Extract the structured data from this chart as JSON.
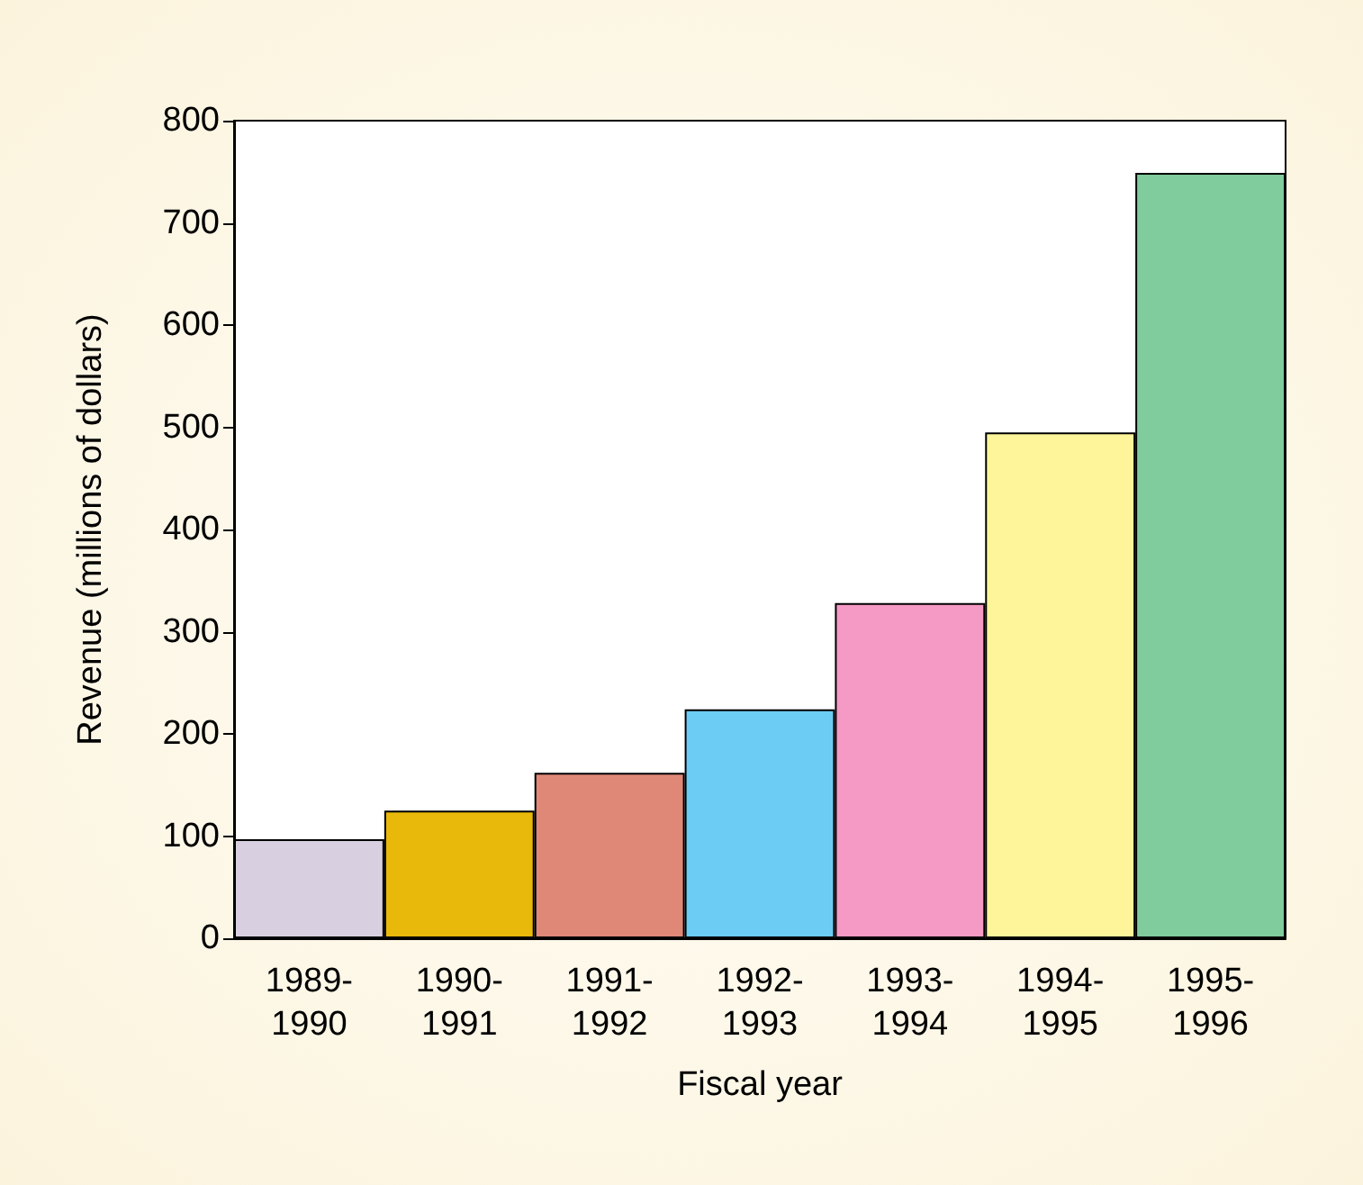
{
  "chart_data": {
    "type": "bar",
    "xlabel": "Fiscal year",
    "ylabel": "Revenue (millions of dollars)",
    "categories": [
      "1989-1990",
      "1990-1991",
      "1991-1992",
      "1992-1993",
      "1993-1994",
      "1994-1995",
      "1995-1996"
    ],
    "values": [
      97,
      125,
      162,
      224,
      328,
      495,
      749
    ],
    "colors": [
      "#d8d0e0",
      "#e8b80a",
      "#e08878",
      "#6cccf4",
      "#f49ac4",
      "#fef59a",
      "#80cc9c"
    ],
    "ylim": [
      0,
      800
    ],
    "yticks": [
      0,
      100,
      200,
      300,
      400,
      500,
      600,
      700,
      800
    ],
    "grid": false
  }
}
